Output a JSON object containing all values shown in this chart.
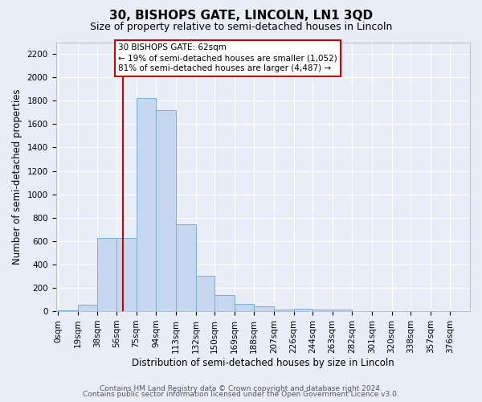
{
  "title": "30, BISHOPS GATE, LINCOLN, LN1 3QD",
  "subtitle": "Size of property relative to semi-detached houses in Lincoln",
  "xlabel": "Distribution of semi-detached houses by size in Lincoln",
  "ylabel": "Number of semi-detached properties",
  "annotation_title": "30 BISHOPS GATE: 62sqm",
  "annotation_line1": "← 19% of semi-detached houses are smaller (1,052)",
  "annotation_line2": "81% of semi-detached houses are larger (4,487) →",
  "bar_color": "#c5d8f0",
  "bar_edge_color": "#7aafd4",
  "property_value": 62,
  "red_line_color": "#cc0000",
  "bins": [
    0,
    19,
    38,
    56,
    75,
    94,
    113,
    132,
    150,
    169,
    188,
    207,
    226,
    244,
    263,
    282,
    301,
    320,
    338,
    357,
    376
  ],
  "counts": [
    10,
    55,
    625,
    625,
    1820,
    1720,
    740,
    300,
    135,
    65,
    45,
    15,
    20,
    15,
    15,
    0,
    0,
    0,
    0,
    0
  ],
  "ylim": [
    0,
    2300
  ],
  "yticks": [
    0,
    200,
    400,
    600,
    800,
    1000,
    1200,
    1400,
    1600,
    1800,
    2000,
    2200
  ],
  "footer1": "Contains HM Land Registry data © Crown copyright and database right 2024.",
  "footer2": "Contains public sector information licensed under the Open Government Licence v3.0.",
  "bg_color": "#e8eef8",
  "plot_bg_color": "#e8eef8",
  "title_fontsize": 11,
  "subtitle_fontsize": 9,
  "axis_label_fontsize": 8.5,
  "tick_fontsize": 7.5,
  "footer_fontsize": 6.5
}
